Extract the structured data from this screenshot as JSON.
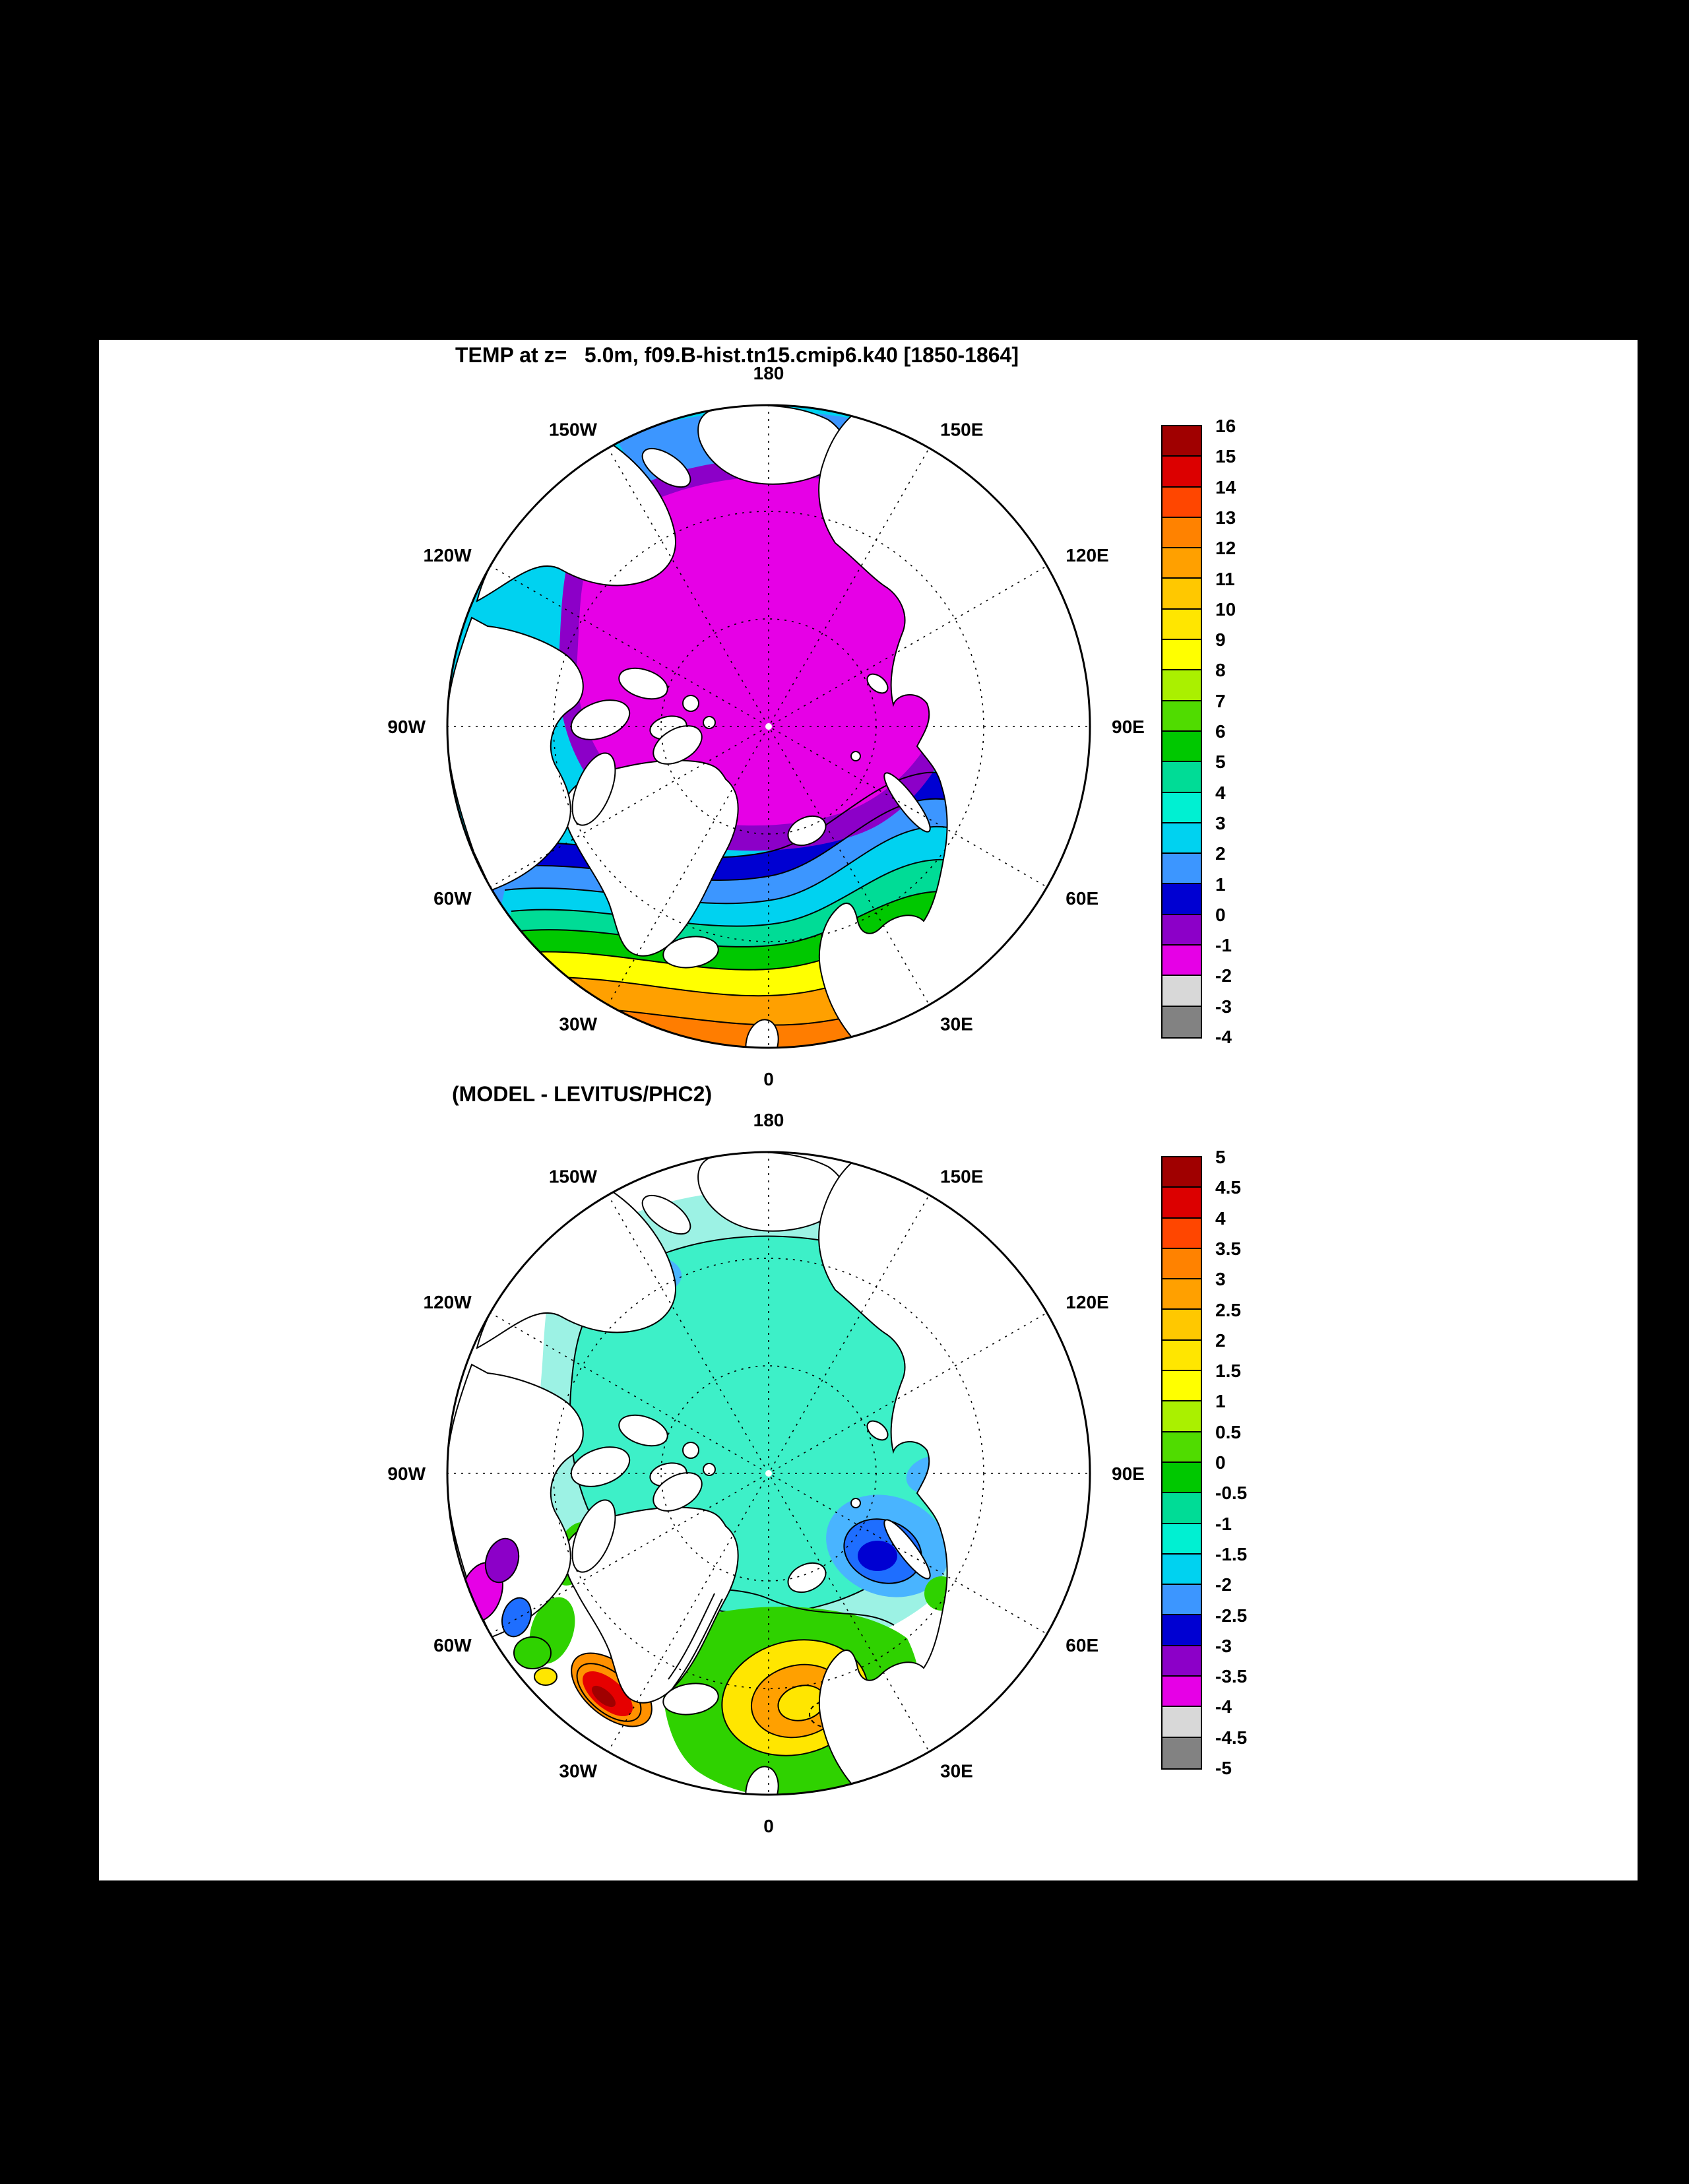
{
  "page": {
    "background": "#000000",
    "panel_background": "#ffffff"
  },
  "chart_data": [
    {
      "type": "heatmap",
      "projection": "north-polar-stereographic",
      "title": "TEMP at z=   5.0m, f09.B-hist.tn15.cmip6.k40 [1850-1864]",
      "variable": "ocean temperature at depth z = 5.0 m",
      "units": "degC",
      "period": "1850-1864",
      "lon_labels": [
        "180",
        "150E",
        "120E",
        "90E",
        "60E",
        "30E",
        "0",
        "30W",
        "60W",
        "90W",
        "120W",
        "150W"
      ],
      "colorbar_levels": [
        "16",
        "15",
        "14",
        "13",
        "12",
        "11",
        "10",
        "9",
        "8",
        "7",
        "6",
        "5",
        "4",
        "3",
        "2",
        "1",
        "0",
        "-1",
        "-2",
        "-3",
        "-4"
      ],
      "colorbar_colors": [
        "#a00000",
        "#dc0000",
        "#ff4600",
        "#ff8200",
        "#ffa000",
        "#ffc800",
        "#ffe600",
        "#ffff00",
        "#aaf000",
        "#50dc00",
        "#00c800",
        "#00dc96",
        "#00f0d2",
        "#00d2f0",
        "#3c96ff",
        "#0000d2",
        "#8c00c8",
        "#e600e6",
        "#d8d8d8",
        "#828282"
      ],
      "grid": "dashed polar graticule, latitude circles and 30-degree meridians",
      "notable_features": [
        {
          "region": "central Arctic Ocean basin",
          "value_range": [
            -2,
            -1
          ],
          "color": "magenta"
        },
        {
          "region": "fringe around sea-ice edge",
          "value_range": [
            -1,
            0
          ],
          "color": "purple"
        },
        {
          "region": "ring outside ice edge (Bering, Barents approaches)",
          "value_range": [
            0,
            2
          ],
          "color": "navy/blue"
        },
        {
          "region": "Norwegian Sea and Labrador Sea",
          "value_range": [
            2,
            8
          ],
          "color": "cyan-green-yellow bands"
        },
        {
          "region": "North Atlantic southern rim",
          "value_range": [
            8,
            12
          ],
          "color": "orange"
        },
        {
          "region": "land areas",
          "value_range": null,
          "color": "white with black coastlines"
        }
      ]
    },
    {
      "type": "heatmap",
      "projection": "north-polar-stereographic",
      "title": "(MODEL - LEVITUS/PHC2)",
      "variable": "temperature difference, model minus Levitus/PHC2 climatology",
      "units": "degC",
      "lon_labels": [
        "180",
        "150E",
        "120E",
        "90E",
        "60E",
        "30E",
        "0",
        "30W",
        "60W",
        "90W",
        "120W",
        "150W"
      ],
      "colorbar_levels": [
        "5",
        "4.5",
        "4",
        "3.5",
        "3",
        "2.5",
        "2",
        "1.5",
        "1",
        "0.5",
        "0",
        "-0.5",
        "-1",
        "-1.5",
        "-2",
        "-2.5",
        "-3",
        "-3.5",
        "-4",
        "-4.5",
        "-5"
      ],
      "colorbar_colors": [
        "#a00000",
        "#dc0000",
        "#ff4600",
        "#ff8200",
        "#ffa000",
        "#ffc800",
        "#ffe600",
        "#ffff00",
        "#aaf000",
        "#50dc00",
        "#00c800",
        "#00dc96",
        "#00f0d2",
        "#00d2f0",
        "#3c96ff",
        "#0000d2",
        "#8c00c8",
        "#e600e6",
        "#d8d8d8",
        "#828282"
      ],
      "grid": "dashed polar graticule, latitude circles and 30-degree meridians",
      "notable_features": [
        {
          "region": "central Arctic Ocean",
          "value_range": [
            -1.5,
            -0.5
          ],
          "color": "aquamarine"
        },
        {
          "region": "ring around central basin",
          "value_range": [
            -0.5,
            0
          ],
          "color": "pale cyan"
        },
        {
          "region": "Barents Sea / Franz Josef area",
          "value_range": [
            -3,
            -1.5
          ],
          "color": "blue to navy"
        },
        {
          "region": "Norwegian Sea",
          "value_range": [
            0.5,
            2.5
          ],
          "color": "yellow-orange closed contours"
        },
        {
          "region": "southwest Greenland / Irminger Sea",
          "value_range": [
            3,
            5
          ],
          "color": "red hot spot with dense contours"
        },
        {
          "region": "Hudson Bay sector near 90W",
          "value_range": [
            -4,
            -3
          ],
          "color": "magenta/purple"
        },
        {
          "region": "land areas",
          "value_range": null,
          "color": "white with black coastlines"
        }
      ]
    }
  ]
}
